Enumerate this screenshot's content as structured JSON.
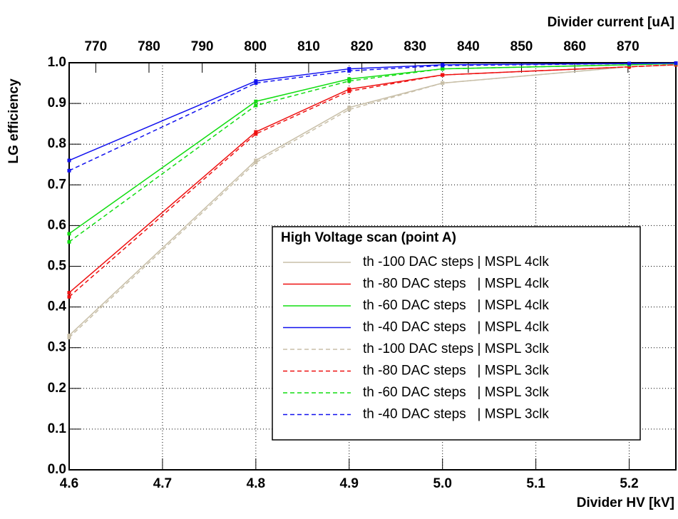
{
  "chart_data": {
    "type": "line",
    "ylabel": "LG efficiency",
    "xlabel": "Divider HV [kV]",
    "x2label": "Divider current [uA]",
    "x": [
      4.6,
      4.8,
      4.9,
      5.0,
      5.2,
      5.25
    ],
    "xlim": [
      4.6,
      5.25
    ],
    "xticks": [
      4.6,
      4.7,
      4.8,
      4.9,
      {
        "value": 5.0,
        "label": "5.0"
      },
      5.1,
      5.2
    ],
    "x2lim": [
      765,
      879
    ],
    "x2ticks": [
      770,
      780,
      790,
      800,
      810,
      820,
      830,
      840,
      850,
      860,
      870
    ],
    "ylim": [
      0,
      1
    ],
    "yticks": [
      {
        "value": 0,
        "label": "0.0"
      },
      0.1,
      0.2,
      0.3,
      0.4,
      0.5,
      0.6,
      0.7,
      0.8,
      0.9,
      {
        "value": 1,
        "label": "1.0"
      }
    ],
    "grid": true,
    "legend_title": "High Voltage scan (point A)",
    "series": [
      {
        "name": "th -100 DAC steps | MSPL 4clk",
        "color": "#c8bfa8",
        "dashed": false,
        "values": [
          0.33,
          0.76,
          0.89,
          0.95,
          0.99,
          0.995
        ]
      },
      {
        "name": "th -80 DAC steps   | MSPL 4clk",
        "color": "#ee1111",
        "dashed": false,
        "values": [
          0.435,
          0.83,
          0.935,
          0.97,
          0.99,
          0.995
        ]
      },
      {
        "name": "th -60 DAC steps   | MSPL 4clk",
        "color": "#11dd11",
        "dashed": false,
        "values": [
          0.58,
          0.905,
          0.96,
          0.985,
          0.995,
          0.998
        ]
      },
      {
        "name": "th -40 DAC steps   | MSPL 4clk",
        "color": "#1111ee",
        "dashed": false,
        "values": [
          0.76,
          0.955,
          0.985,
          0.995,
          0.998,
          0.999
        ]
      },
      {
        "name": "th -100 DAC steps | MSPL 3clk",
        "color": "#c8bfa8",
        "dashed": true,
        "values": [
          0.325,
          0.755,
          0.885,
          0.95,
          0.99,
          0.995
        ]
      },
      {
        "name": "th -80 DAC steps   | MSPL 3clk",
        "color": "#ee1111",
        "dashed": true,
        "values": [
          0.425,
          0.825,
          0.93,
          0.97,
          0.99,
          0.995
        ]
      },
      {
        "name": "th -60 DAC steps   | MSPL 3clk",
        "color": "#11dd11",
        "dashed": true,
        "values": [
          0.56,
          0.895,
          0.955,
          0.985,
          0.995,
          0.998
        ]
      },
      {
        "name": "th -40 DAC steps   | MSPL 3clk",
        "color": "#1111ee",
        "dashed": true,
        "values": [
          0.735,
          0.95,
          0.98,
          0.993,
          0.998,
          0.999
        ]
      }
    ]
  }
}
